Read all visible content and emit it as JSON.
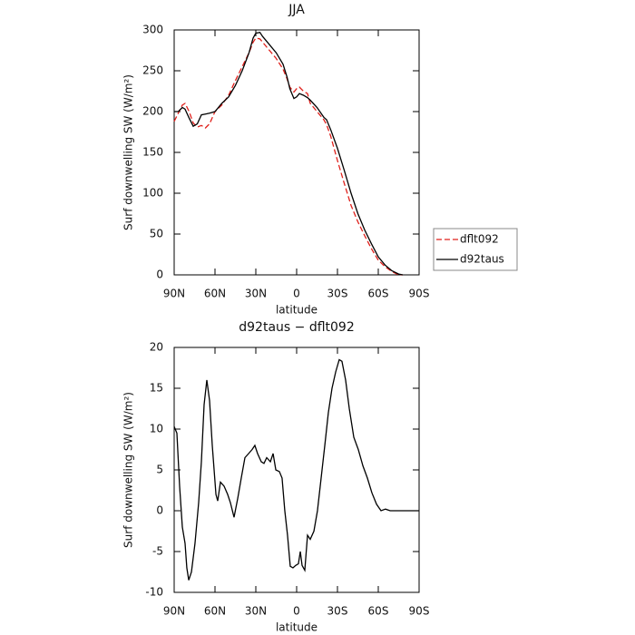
{
  "chart_data": [
    {
      "type": "line",
      "title": "JJA",
      "xlabel": "latitude",
      "ylabel": "Surf downwelling SW (W/m²)",
      "x": [
        90,
        87,
        84,
        82,
        79,
        76,
        73,
        70,
        67,
        64,
        60,
        55,
        50,
        45,
        40,
        35,
        32,
        30,
        27,
        25,
        20,
        15,
        10,
        7,
        5,
        2,
        0,
        -2,
        -5,
        -8,
        -10,
        -15,
        -20,
        -22,
        -25,
        -30,
        -35,
        -40,
        -45,
        -50,
        -55,
        -60,
        -65,
        -70,
        -75,
        -78
      ],
      "series": [
        {
          "name": "dflt092",
          "color": "#e0201b",
          "line_style": "dashed",
          "values": [
            188,
            198,
            208,
            210,
            200,
            186,
            181,
            183,
            180,
            185,
            200,
            208,
            220,
            238,
            255,
            272,
            285,
            290,
            289,
            285,
            275,
            265,
            252,
            240,
            230,
            224,
            228,
            230,
            225,
            222,
            210,
            200,
            190,
            184,
            170,
            140,
            112,
            85,
            65,
            48,
            32,
            18,
            10,
            4,
            0,
            0
          ]
        },
        {
          "name": "d92taus",
          "color": "#000000",
          "line_style": "solid",
          "values": [
            200,
            200,
            205,
            203,
            192,
            182,
            185,
            196,
            197,
            198,
            200,
            210,
            218,
            232,
            250,
            272,
            290,
            296,
            297,
            292,
            282,
            272,
            258,
            242,
            228,
            216,
            218,
            222,
            220,
            217,
            214,
            205,
            193,
            190,
            178,
            155,
            128,
            100,
            75,
            55,
            38,
            22,
            12,
            5,
            1,
            0
          ]
        }
      ],
      "xlim": [
        90,
        -90
      ],
      "ylim": [
        0,
        300
      ],
      "xticks": [
        {
          "value": 90,
          "label": "90N"
        },
        {
          "value": 60,
          "label": "60N"
        },
        {
          "value": 30,
          "label": "30N"
        },
        0,
        {
          "value": -30,
          "label": "30S"
        },
        {
          "value": -60,
          "label": "60S"
        },
        {
          "value": -90,
          "label": "90S"
        }
      ],
      "yticks": [
        0,
        50,
        100,
        150,
        200,
        250,
        300
      ],
      "legend": "right"
    },
    {
      "type": "line",
      "title": "d92taus − dflt092",
      "xlabel": "latitude",
      "ylabel": "Surf downwelling SW (W/m²)",
      "x": [
        90,
        88,
        86,
        84,
        82,
        80.7,
        79.3,
        77.3,
        74.7,
        72,
        70,
        68,
        66,
        64,
        62,
        59.3,
        58,
        56,
        53.3,
        50.7,
        48.7,
        46,
        43.3,
        40.7,
        38,
        35.3,
        32.7,
        30.7,
        28.7,
        26,
        24,
        22,
        19.3,
        17.3,
        15.3,
        12.7,
        10.7,
        8.7,
        6.7,
        4.7,
        2.7,
        0.7,
        -1.3,
        -2.7,
        -4,
        -6,
        -8,
        -10,
        -12.7,
        -15.3,
        -18,
        -20.7,
        -23.3,
        -26,
        -28.7,
        -31.3,
        -33.3,
        -36,
        -38.7,
        -42,
        -45.3,
        -48.7,
        -52,
        -55.3,
        -58.7,
        -62,
        -65.3,
        -68.7,
        -90
      ],
      "series": [
        {
          "color": "#000000",
          "line_style": "solid",
          "values": [
            10.3,
            9.5,
            3,
            -2,
            -4,
            -7,
            -8.5,
            -7.5,
            -4,
            1,
            6,
            13,
            16,
            13.5,
            8,
            2,
            1.2,
            3.5,
            3,
            2,
            1,
            -0.8,
            1.5,
            4,
            6.5,
            7,
            7.5,
            8,
            7,
            6,
            5.8,
            6.5,
            6,
            7,
            5,
            4.8,
            4,
            0,
            -3,
            -6.8,
            -7,
            -6.7,
            -6.5,
            -5,
            -6.7,
            -7.3,
            -3,
            -3.5,
            -2.5,
            0,
            4,
            8,
            12,
            15,
            17,
            18.5,
            18.3,
            16,
            12.5,
            9,
            7.5,
            5.5,
            4,
            2.2,
            0.8,
            0,
            0.2,
            0,
            0
          ]
        }
      ],
      "xlim": [
        90,
        -90
      ],
      "ylim": [
        -10,
        20
      ],
      "xticks": [
        {
          "value": 90,
          "label": "90N"
        },
        {
          "value": 60,
          "label": "60N"
        },
        {
          "value": 30,
          "label": "30N"
        },
        0,
        {
          "value": -30,
          "label": "30S"
        },
        {
          "value": -60,
          "label": "60S"
        },
        {
          "value": -90,
          "label": "90S"
        }
      ],
      "yticks": [
        -10,
        -5,
        0,
        5,
        10,
        15,
        20
      ]
    }
  ]
}
